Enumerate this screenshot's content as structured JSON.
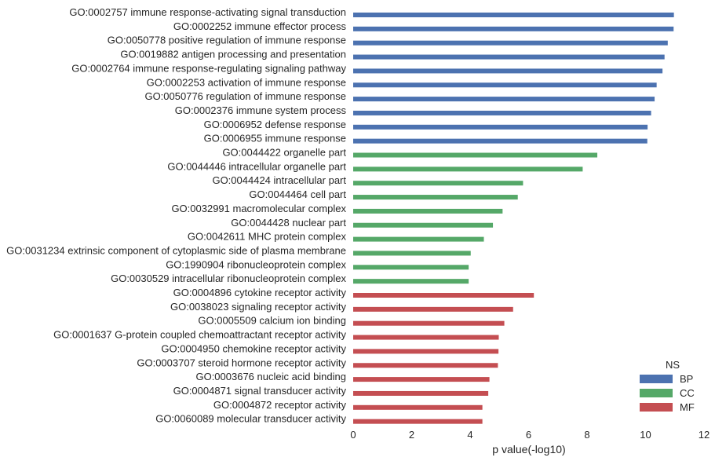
{
  "chart_data": {
    "type": "bar",
    "orientation": "horizontal",
    "xlabel": "p value(-log10)",
    "ylabel": "",
    "xlim": [
      0,
      12
    ],
    "xticks": [
      "0",
      "2",
      "4",
      "6",
      "8",
      "10",
      "12"
    ],
    "grid": false,
    "legend": {
      "title": "NS",
      "placement": "bottom-right",
      "entries": [
        {
          "name": "BP",
          "color": "#4c72b0"
        },
        {
          "name": "CC",
          "color": "#55a868"
        },
        {
          "name": "MF",
          "color": "#c44e52"
        }
      ]
    },
    "bars": [
      {
        "label": "GO:0002757 immune response-activating signal transduction",
        "value": 10.97,
        "group": "BP"
      },
      {
        "label": "GO:0002252 immune effector process",
        "value": 10.96,
        "group": "BP"
      },
      {
        "label": "GO:0050778 positive regulation of immune response",
        "value": 10.76,
        "group": "BP"
      },
      {
        "label": "GO:0019882 antigen processing and presentation",
        "value": 10.65,
        "group": "BP"
      },
      {
        "label": "GO:0002764 immune response-regulating signaling pathway",
        "value": 10.58,
        "group": "BP"
      },
      {
        "label": "GO:0002253 activation of immune response",
        "value": 10.38,
        "group": "BP"
      },
      {
        "label": "GO:0050776 regulation of immune response",
        "value": 10.31,
        "group": "BP"
      },
      {
        "label": "GO:0002376 immune system process",
        "value": 10.19,
        "group": "BP"
      },
      {
        "label": "GO:0006952 defense response",
        "value": 10.07,
        "group": "BP"
      },
      {
        "label": "GO:0006955 immune response",
        "value": 10.06,
        "group": "BP"
      },
      {
        "label": "GO:0044422 organelle part",
        "value": 8.35,
        "group": "CC"
      },
      {
        "label": "GO:0044446 intracellular organelle part",
        "value": 7.85,
        "group": "CC"
      },
      {
        "label": "GO:0044424 intracellular part",
        "value": 5.81,
        "group": "CC"
      },
      {
        "label": "GO:0044464 cell part",
        "value": 5.63,
        "group": "CC"
      },
      {
        "label": "GO:0032991 macromolecular complex",
        "value": 5.11,
        "group": "CC"
      },
      {
        "label": "GO:0044428 nuclear part",
        "value": 4.78,
        "group": "CC"
      },
      {
        "label": "GO:0042611 MHC protein complex",
        "value": 4.47,
        "group": "CC"
      },
      {
        "label": "GO:0031234 extrinsic component of cytoplasmic side of plasma membrane",
        "value": 4.02,
        "group": "CC"
      },
      {
        "label": "GO:1990904 ribonucleoprotein complex",
        "value": 3.95,
        "group": "CC"
      },
      {
        "label": "GO:0030529 intracellular ribonucleoprotein complex",
        "value": 3.95,
        "group": "CC"
      },
      {
        "label": "GO:0004896 cytokine receptor activity",
        "value": 6.18,
        "group": "MF"
      },
      {
        "label": "GO:0038023 signaling receptor activity",
        "value": 5.47,
        "group": "MF"
      },
      {
        "label": "GO:0005509 calcium ion binding",
        "value": 5.17,
        "group": "MF"
      },
      {
        "label": "GO:0001637 G-protein coupled chemoattractant receptor activity",
        "value": 4.98,
        "group": "MF"
      },
      {
        "label": "GO:0004950 chemokine receptor activity",
        "value": 4.97,
        "group": "MF"
      },
      {
        "label": "GO:0003707 steroid hormone receptor activity",
        "value": 4.95,
        "group": "MF"
      },
      {
        "label": "GO:0003676 nucleic acid binding",
        "value": 4.66,
        "group": "MF"
      },
      {
        "label": "GO:0004871 signal transducer activity",
        "value": 4.62,
        "group": "MF"
      },
      {
        "label": "GO:0004872 receptor activity",
        "value": 4.42,
        "group": "MF"
      },
      {
        "label": "GO:0060089 molecular transducer activity",
        "value": 4.42,
        "group": "MF"
      }
    ]
  }
}
